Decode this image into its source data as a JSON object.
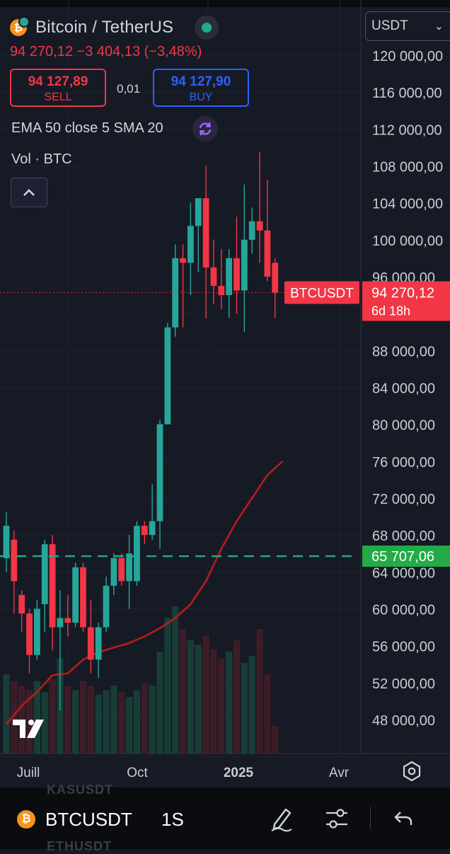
{
  "header": {
    "symbol_title": "Bitcoin / TetherUS",
    "price_change_line": "94 270,12 −3 404,13 (−3,48%)",
    "sell": {
      "price": "94 127,89",
      "label": "SELL"
    },
    "spread": "0,01",
    "buy": {
      "price": "94 127,90",
      "label": "BUY"
    },
    "indicators": "EMA 50 close 5 SMA 20",
    "volume_label": "Vol · BTC",
    "currency_selector": "USDT"
  },
  "price_axis": {
    "labels": [
      "120 000,00",
      "116 000,00",
      "112 000,00",
      "108 000,00",
      "104 000,00",
      "100 000,00",
      "96 000,00",
      "88 000,00",
      "84 000,00",
      "80 000,00",
      "76 000,00",
      "72 000,00",
      "68 000,00",
      "64 000,00",
      "60 000,00",
      "56 000,00",
      "52 000,00",
      "48 000,00"
    ],
    "last_price_tag": {
      "price": "94 270,12",
      "countdown": "6d 18h",
      "symbol": "BTCUSDT"
    },
    "level_tag": "65 707,06"
  },
  "time_axis": {
    "labels": [
      "Juill",
      "Oct",
      "2025",
      "Avr"
    ]
  },
  "bottom_bar": {
    "symbol": "BTCUSDT",
    "interval": "1S",
    "ghost_above": "KASUSDT",
    "ghost_below": "ETHUSDT"
  },
  "colors": {
    "up": "#26a69a",
    "down": "#f23645",
    "ema": "#b71c1c",
    "level": "#22ab94",
    "buy": "#2962ff",
    "background": "#161a25"
  },
  "chart_data": {
    "type": "candlestick",
    "interval": "1 week",
    "y_range": [
      45000,
      123000
    ],
    "candles": [
      {
        "o": 65500,
        "h": 70500,
        "l": 64000,
        "c": 69000
      },
      {
        "o": 67500,
        "h": 68500,
        "l": 59500,
        "c": 63000
      },
      {
        "o": 61500,
        "h": 62000,
        "l": 57500,
        "c": 59500
      },
      {
        "o": 59500,
        "h": 60000,
        "l": 53000,
        "c": 55000
      },
      {
        "o": 55000,
        "h": 61000,
        "l": 54500,
        "c": 60000
      },
      {
        "o": 60500,
        "h": 67500,
        "l": 57500,
        "c": 67000
      },
      {
        "o": 67000,
        "h": 68000,
        "l": 55500,
        "c": 58000
      },
      {
        "o": 58000,
        "h": 62000,
        "l": 49000,
        "c": 59000
      },
      {
        "o": 59000,
        "h": 61500,
        "l": 57000,
        "c": 58500
      },
      {
        "o": 58500,
        "h": 65000,
        "l": 58000,
        "c": 64500
      },
      {
        "o": 64500,
        "h": 65000,
        "l": 57500,
        "c": 58000
      },
      {
        "o": 58000,
        "h": 61000,
        "l": 53000,
        "c": 54500
      },
      {
        "o": 54500,
        "h": 58500,
        "l": 52500,
        "c": 58000
      },
      {
        "o": 58000,
        "h": 63500,
        "l": 57500,
        "c": 62500
      },
      {
        "o": 62500,
        "h": 66000,
        "l": 61500,
        "c": 65500
      },
      {
        "o": 65500,
        "h": 66000,
        "l": 62500,
        "c": 63000
      },
      {
        "o": 63000,
        "h": 68000,
        "l": 60000,
        "c": 66000
      },
      {
        "o": 63000,
        "h": 69500,
        "l": 62500,
        "c": 69000
      },
      {
        "o": 69000,
        "h": 69500,
        "l": 67000,
        "c": 68000
      },
      {
        "o": 68000,
        "h": 73500,
        "l": 67500,
        "c": 69500
      },
      {
        "o": 69500,
        "h": 80500,
        "l": 66500,
        "c": 80000
      },
      {
        "o": 80000,
        "h": 91000,
        "l": 80000,
        "c": 90500
      },
      {
        "o": 90500,
        "h": 99500,
        "l": 89500,
        "c": 98000
      },
      {
        "o": 98000,
        "h": 99500,
        "l": 90500,
        "c": 97500
      },
      {
        "o": 97500,
        "h": 104000,
        "l": 94000,
        "c": 101500
      },
      {
        "o": 101500,
        "h": 104500,
        "l": 96500,
        "c": 104500
      },
      {
        "o": 104500,
        "h": 108000,
        "l": 91500,
        "c": 97000
      },
      {
        "o": 97000,
        "h": 100000,
        "l": 93000,
        "c": 95000
      },
      {
        "o": 95000,
        "h": 99000,
        "l": 92500,
        "c": 94000
      },
      {
        "o": 94000,
        "h": 99000,
        "l": 91500,
        "c": 98000
      },
      {
        "o": 98000,
        "h": 102500,
        "l": 92000,
        "c": 94500
      },
      {
        "o": 94500,
        "h": 106000,
        "l": 90000,
        "c": 100000
      },
      {
        "o": 100000,
        "h": 103500,
        "l": 98500,
        "c": 102000
      },
      {
        "o": 102000,
        "h": 109500,
        "l": 97500,
        "c": 101000
      },
      {
        "o": 101000,
        "h": 106500,
        "l": 95500,
        "c": 96000
      },
      {
        "o": 97500,
        "h": 98000,
        "l": 91500,
        "c": 94270
      }
    ],
    "volume_relative": [
      0.35,
      0.32,
      0.3,
      0.28,
      0.32,
      0.27,
      0.33,
      0.42,
      0.3,
      0.28,
      0.32,
      0.3,
      0.26,
      0.28,
      0.3,
      0.27,
      0.25,
      0.28,
      0.31,
      0.3,
      0.45,
      0.6,
      0.65,
      0.55,
      0.5,
      0.48,
      0.52,
      0.46,
      0.42,
      0.45,
      0.5,
      0.4,
      0.43,
      0.55,
      0.35,
      0.12
    ],
    "ema50": [
      [
        0,
        47500
      ],
      [
        2,
        49500
      ],
      [
        4,
        51000
      ],
      [
        6,
        52800
      ],
      [
        8,
        53000
      ],
      [
        10,
        54500
      ],
      [
        12,
        55300
      ],
      [
        14,
        55800
      ],
      [
        16,
        56300
      ],
      [
        18,
        57000
      ],
      [
        20,
        57900
      ],
      [
        22,
        59000
      ],
      [
        24,
        60500
      ],
      [
        26,
        63000
      ],
      [
        28,
        66500
      ],
      [
        30,
        69500
      ],
      [
        32,
        72000
      ],
      [
        34,
        74500
      ],
      [
        36,
        76000
      ]
    ],
    "last_price": 94270.12,
    "horizontal_level": 65707.06,
    "x_labels": [
      "Juill",
      "Oct",
      "2025",
      "Avr"
    ],
    "y_labels": [
      "120 000,00",
      "116 000,00",
      "112 000,00",
      "108 000,00",
      "104 000,00",
      "100 000,00",
      "96 000,00",
      "88 000,00",
      "84 000,00",
      "80 000,00",
      "76 000,00",
      "72 000,00",
      "68 000,00",
      "64 000,00",
      "60 000,00",
      "56 000,00",
      "52 000,00",
      "48 000,00"
    ]
  }
}
